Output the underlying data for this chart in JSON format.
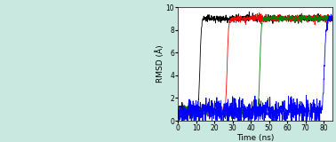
{
  "xlabel": "Time (ns)",
  "ylabel": "RMSD (Å)",
  "xlim": [
    0,
    85
  ],
  "ylim": [
    0,
    10
  ],
  "xticks": [
    0,
    10,
    20,
    30,
    40,
    50,
    60,
    70,
    80
  ],
  "yticks": [
    0,
    2,
    4,
    6,
    8,
    10
  ],
  "lines": [
    {
      "color": "black",
      "rise_start": 10,
      "rise_end": 14,
      "baseline_noise": 0.25,
      "post_noise": 0.15,
      "max_rmsd": 9.0
    },
    {
      "color": "red",
      "rise_start": 25,
      "rise_end": 29,
      "baseline_noise": 0.25,
      "post_noise": 0.15,
      "max_rmsd": 9.0
    },
    {
      "color": "green",
      "rise_start": 43,
      "rise_end": 47,
      "baseline_noise": 0.2,
      "post_noise": 0.12,
      "max_rmsd": 9.0
    },
    {
      "color": "blue",
      "rise_start": 78,
      "rise_end": 83,
      "baseline_noise": 0.55,
      "post_noise": 0.2,
      "max_rmsd": 9.0
    }
  ],
  "baseline_rmsd": 0.8,
  "figsize": [
    3.78,
    1.6
  ],
  "dpi": 100,
  "left_panel_color": "#c8e8e0",
  "plot_bg": "#ffffff",
  "seed": 12345
}
